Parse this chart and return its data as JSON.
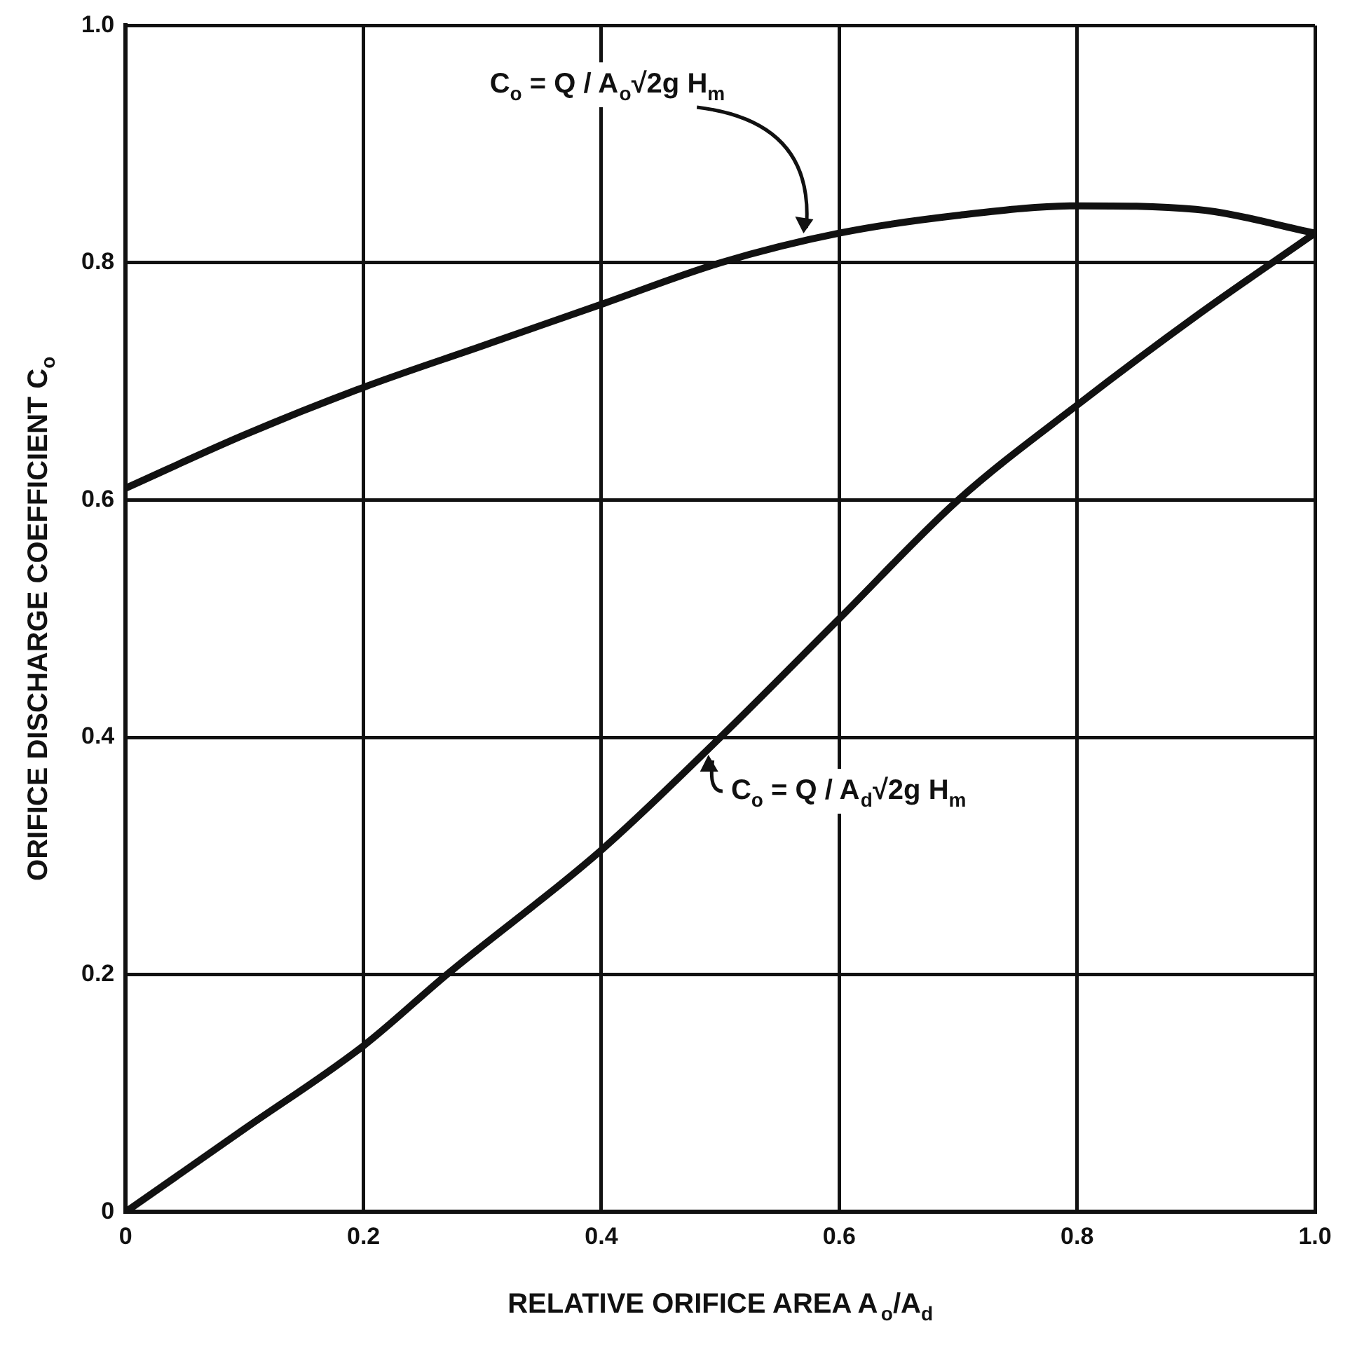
{
  "chart_data": {
    "type": "line",
    "xlabel": "RELATIVE ORIFICE AREA A$_{o}$/A$_{d}$",
    "ylabel": "ORIFICE DISCHARGE COEFFICIENT C$_{o}$",
    "series": [
      {
        "color": "#111111",
        "x": [
          0,
          0.1,
          0.2,
          0.3,
          0.4,
          0.5,
          0.6,
          0.7,
          0.8,
          0.9,
          1.0
        ],
        "values": [
          0.61,
          0.655,
          0.695,
          0.73,
          0.765,
          0.8,
          0.825,
          0.84,
          0.848,
          0.845,
          0.825
        ]
      },
      {
        "color": "#111111",
        "x": [
          0,
          0.1,
          0.2,
          0.27,
          0.4,
          0.5,
          0.6,
          0.7,
          0.8,
          0.9,
          1.0
        ],
        "values": [
          0,
          0.07,
          0.14,
          0.2,
          0.305,
          0.4,
          0.5,
          0.6,
          0.68,
          0.755,
          0.825
        ]
      }
    ],
    "xlim": [
      0,
      1
    ],
    "ylim": [
      0,
      1
    ],
    "xticks": [
      0,
      0.2,
      0.4,
      0.6,
      0.8,
      {
        "value": 1,
        "label": "1.0"
      }
    ],
    "yticks": [
      0,
      0.2,
      0.4,
      0.6,
      0.8,
      {
        "value": 1,
        "label": "1.0"
      }
    ],
    "grid": true,
    "marker": "none",
    "line_style": "solid",
    "legend": false,
    "annotations": [
      {
        "text": "C$_{o}$ = Q / A$_{o}$√2g H$_{m}$",
        "x": 0.57,
        "y": 0.82
      },
      {
        "text": "C$_{o}$ = Q / A$_{d}$√2g H$_{m}$",
        "x": 0.49,
        "y": 0.39
      }
    ]
  }
}
